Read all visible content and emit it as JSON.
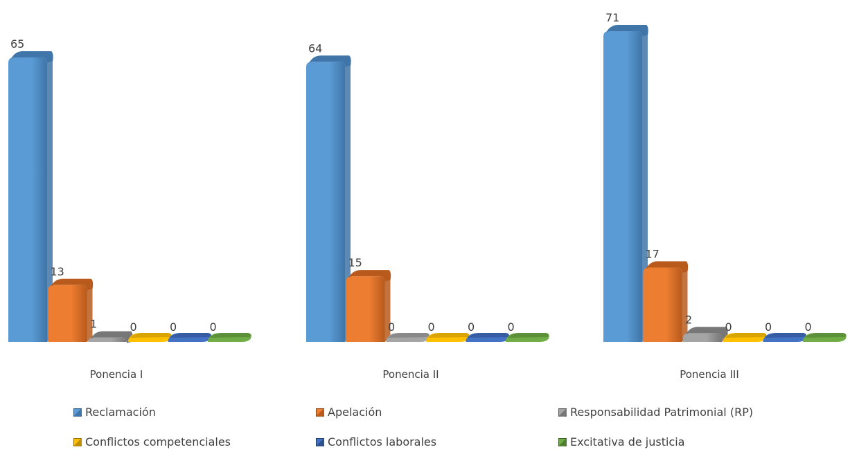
{
  "chart_data": {
    "type": "bar",
    "categories": [
      "Ponencia I",
      "Ponencia II",
      "Ponencia III"
    ],
    "series": [
      {
        "name": "Reclamación",
        "values": [
          65,
          64,
          71
        ],
        "color": "#5b9bd5",
        "dark": "#3f75a8"
      },
      {
        "name": "Apelación",
        "values": [
          13,
          15,
          17
        ],
        "color": "#ed7d31",
        "dark": "#b85a1c"
      },
      {
        "name": "Responsabilidad Patrimonial (RP)",
        "values": [
          1,
          0,
          2
        ],
        "color": "#a5a5a5",
        "dark": "#777777"
      },
      {
        "name": "Conflictos competenciales",
        "values": [
          0,
          0,
          0
        ],
        "color": "#ffc000",
        "dark": "#c08f00"
      },
      {
        "name": "Conflictos laborales",
        "values": [
          0,
          0,
          0
        ],
        "color": "#4472c4",
        "dark": "#2d508f"
      },
      {
        "name": "Excitativa de justicia",
        "values": [
          0,
          0,
          0
        ],
        "color": "#70ad47",
        "dark": "#4e7f30"
      }
    ],
    "title": "",
    "xlabel": "",
    "ylabel": "",
    "ylim": [
      0,
      71
    ],
    "grid": false,
    "legend_position": "bottom",
    "data_labels": true
  }
}
